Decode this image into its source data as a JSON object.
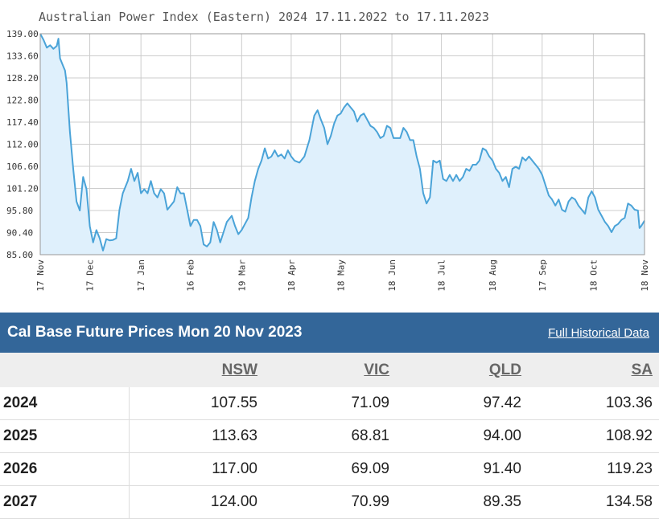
{
  "chart_data": {
    "type": "area",
    "title": "Australian Power Index (Eastern) 2024 17.11.2022 to 17.11.2023",
    "ylim": [
      85.0,
      139.0
    ],
    "y_ticks": [
      "139.00",
      "133.60",
      "128.20",
      "122.80",
      "117.40",
      "112.00",
      "106.60",
      "101.20",
      "95.80",
      "90.40",
      "85.00"
    ],
    "x_ticks": [
      "17 Nov",
      "17 Dec",
      "17 Jan",
      "16 Feb",
      "19 Mar",
      "18 Apr",
      "18 May",
      "18 Jun",
      "18 Jul",
      "18 Aug",
      "17 Sep",
      "18 Oct",
      "18 Nov"
    ],
    "x_tick_days": [
      0,
      30,
      61,
      91,
      122,
      152,
      182,
      213,
      243,
      274,
      304,
      335,
      366
    ],
    "grid": true,
    "legend": "none",
    "colors": {
      "line": "#4aa3d8",
      "fill": "#dff0fc",
      "grid": "#cccccc",
      "frame": "#999999"
    },
    "points": [
      [
        0,
        139.0
      ],
      [
        2,
        137.5
      ],
      [
        4,
        135.6
      ],
      [
        6,
        136.2
      ],
      [
        8,
        135.3
      ],
      [
        10,
        136.0
      ],
      [
        11,
        137.8
      ],
      [
        12,
        133.0
      ],
      [
        14,
        131.0
      ],
      [
        15,
        130.0
      ],
      [
        16,
        127.0
      ],
      [
        18,
        115.0
      ],
      [
        20,
        106.0
      ],
      [
        22,
        98.0
      ],
      [
        24,
        95.8
      ],
      [
        26,
        104.0
      ],
      [
        28,
        101.0
      ],
      [
        30,
        92.0
      ],
      [
        32,
        88.0
      ],
      [
        34,
        91.0
      ],
      [
        36,
        89.0
      ],
      [
        38,
        86.0
      ],
      [
        40,
        88.8
      ],
      [
        42,
        88.5
      ],
      [
        44,
        88.6
      ],
      [
        46,
        89.0
      ],
      [
        48,
        96.0
      ],
      [
        50,
        100.0
      ],
      [
        53,
        103.0
      ],
      [
        55,
        106.0
      ],
      [
        57,
        103.0
      ],
      [
        59,
        105.0
      ],
      [
        61,
        100.0
      ],
      [
        63,
        101.0
      ],
      [
        65,
        100.0
      ],
      [
        67,
        103.0
      ],
      [
        69,
        100.0
      ],
      [
        71,
        99.0
      ],
      [
        73,
        101.0
      ],
      [
        75,
        100.0
      ],
      [
        77,
        96.0
      ],
      [
        79,
        97.0
      ],
      [
        81,
        98.0
      ],
      [
        83,
        101.5
      ],
      [
        85,
        100.0
      ],
      [
        87,
        100.0
      ],
      [
        89,
        96.0
      ],
      [
        91,
        92.0
      ],
      [
        93,
        93.5
      ],
      [
        95,
        93.5
      ],
      [
        97,
        92.0
      ],
      [
        99,
        87.5
      ],
      [
        101,
        87.0
      ],
      [
        103,
        88.0
      ],
      [
        105,
        93.0
      ],
      [
        107,
        91.0
      ],
      [
        109,
        88.0
      ],
      [
        111,
        90.5
      ],
      [
        113,
        93.0
      ],
      [
        116,
        94.5
      ],
      [
        118,
        92.0
      ],
      [
        120,
        90.0
      ],
      [
        122,
        91.0
      ],
      [
        124,
        92.5
      ],
      [
        126,
        94.0
      ],
      [
        128,
        99.0
      ],
      [
        130,
        103.0
      ],
      [
        132,
        106.0
      ],
      [
        134,
        108.0
      ],
      [
        136,
        111.0
      ],
      [
        138,
        108.5
      ],
      [
        140,
        109.0
      ],
      [
        142,
        110.5
      ],
      [
        144,
        109.0
      ],
      [
        146,
        109.5
      ],
      [
        148,
        108.5
      ],
      [
        150,
        110.5
      ],
      [
        152,
        109.0
      ],
      [
        154,
        108.0
      ],
      [
        157,
        107.5
      ],
      [
        160,
        109.0
      ],
      [
        163,
        113.0
      ],
      [
        166,
        119.0
      ],
      [
        168,
        120.3
      ],
      [
        170,
        118.0
      ],
      [
        172,
        116.0
      ],
      [
        174,
        112.0
      ],
      [
        176,
        114.0
      ],
      [
        178,
        117.0
      ],
      [
        180,
        119.0
      ],
      [
        182,
        119.5
      ],
      [
        184,
        121.0
      ],
      [
        186,
        122.0
      ],
      [
        188,
        121.0
      ],
      [
        190,
        120.0
      ],
      [
        192,
        117.5
      ],
      [
        194,
        119.0
      ],
      [
        196,
        119.5
      ],
      [
        198,
        118.0
      ],
      [
        200,
        116.5
      ],
      [
        202,
        116.0
      ],
      [
        204,
        115.0
      ],
      [
        206,
        113.5
      ],
      [
        208,
        114.0
      ],
      [
        210,
        116.5
      ],
      [
        212,
        116.0
      ],
      [
        214,
        113.5
      ],
      [
        216,
        113.5
      ],
      [
        218,
        113.5
      ],
      [
        220,
        116.0
      ],
      [
        222,
        115.0
      ],
      [
        224,
        113.0
      ],
      [
        226,
        113.0
      ],
      [
        228,
        109.0
      ],
      [
        230,
        106.0
      ],
      [
        232,
        100.0
      ],
      [
        234,
        97.5
      ],
      [
        236,
        99.0
      ],
      [
        238,
        108.0
      ],
      [
        240,
        107.5
      ],
      [
        242,
        108.0
      ],
      [
        244,
        103.5
      ],
      [
        246,
        103.0
      ],
      [
        248,
        104.5
      ],
      [
        250,
        103.0
      ],
      [
        252,
        104.5
      ],
      [
        254,
        103.0
      ],
      [
        256,
        104.0
      ],
      [
        258,
        106.0
      ],
      [
        260,
        105.5
      ],
      [
        262,
        107.0
      ],
      [
        264,
        107.0
      ],
      [
        266,
        108.0
      ],
      [
        268,
        111.0
      ],
      [
        270,
        110.5
      ],
      [
        272,
        109.0
      ],
      [
        274,
        108.0
      ],
      [
        276,
        106.0
      ],
      [
        278,
        105.0
      ],
      [
        280,
        103.0
      ],
      [
        282,
        104.0
      ],
      [
        284,
        101.5
      ],
      [
        286,
        106.0
      ],
      [
        288,
        106.5
      ],
      [
        290,
        106.0
      ],
      [
        292,
        108.8
      ],
      [
        294,
        108.0
      ],
      [
        296,
        109.0
      ],
      [
        298,
        108.0
      ],
      [
        300,
        107.0
      ],
      [
        302,
        106.0
      ],
      [
        304,
        104.5
      ],
      [
        306,
        102.0
      ],
      [
        308,
        99.5
      ],
      [
        310,
        98.5
      ],
      [
        312,
        97.0
      ],
      [
        314,
        98.5
      ],
      [
        316,
        96.0
      ],
      [
        318,
        95.5
      ],
      [
        320,
        98.0
      ],
      [
        322,
        99.0
      ],
      [
        324,
        98.5
      ],
      [
        326,
        97.0
      ],
      [
        328,
        96.0
      ],
      [
        330,
        95.0
      ],
      [
        332,
        99.0
      ],
      [
        334,
        100.5
      ],
      [
        336,
        99.0
      ],
      [
        338,
        96.0
      ],
      [
        340,
        94.5
      ],
      [
        342,
        93.0
      ],
      [
        344,
        92.0
      ],
      [
        346,
        90.5
      ],
      [
        348,
        92.0
      ],
      [
        350,
        92.5
      ],
      [
        352,
        93.5
      ],
      [
        354,
        94.0
      ],
      [
        356,
        97.5
      ],
      [
        358,
        97.0
      ],
      [
        360,
        96.0
      ],
      [
        362,
        95.8
      ],
      [
        363,
        91.5
      ],
      [
        364,
        92.0
      ],
      [
        366,
        93.3
      ]
    ]
  },
  "table": {
    "title": "Cal Base Future Prices Mon 20 Nov 2023",
    "history_link": "Full Historical Data",
    "columns": [
      "NSW",
      "VIC",
      "QLD",
      "SA"
    ],
    "rows": [
      {
        "year": "2024",
        "values": [
          "107.55",
          "71.09",
          "97.42",
          "103.36"
        ]
      },
      {
        "year": "2025",
        "values": [
          "113.63",
          "68.81",
          "94.00",
          "108.92"
        ]
      },
      {
        "year": "2026",
        "values": [
          "117.00",
          "69.09",
          "91.40",
          "119.23"
        ]
      },
      {
        "year": "2027",
        "values": [
          "124.00",
          "70.99",
          "89.35",
          "134.58"
        ]
      }
    ]
  }
}
